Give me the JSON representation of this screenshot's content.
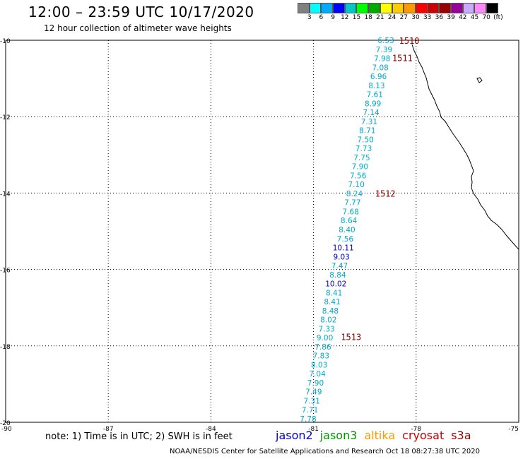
{
  "header": {
    "title": "12:00 – 23:59 UTC 10/17/2020",
    "subtitle": "12 hour collection of altimeter wave heights"
  },
  "scale": {
    "colors": [
      "#808080",
      "#00ffff",
      "#00aaff",
      "#0000ff",
      "#00c8c8",
      "#00ff00",
      "#00aa00",
      "#ffff00",
      "#ffcc00",
      "#ff9900",
      "#ff0000",
      "#cc0000",
      "#990000",
      "#990099",
      "#ccaaff",
      "#ff88ff",
      "#000000"
    ],
    "labels": [
      "3",
      "6",
      "9",
      "12",
      "15",
      "18",
      "21",
      "24",
      "27",
      "30",
      "33",
      "36",
      "39",
      "42",
      "45",
      "70",
      "(ft)"
    ]
  },
  "axes": {
    "lat_labels": [
      "-10",
      "-12",
      "-14",
      "-16",
      "-18",
      "-20"
    ],
    "lon_labels": [
      "-90",
      "-87",
      "-84",
      "-81",
      "-78",
      "-75"
    ]
  },
  "satellites": [
    {
      "name": "jason2",
      "color": "#0000cc"
    },
    {
      "name": "jason3",
      "color": "#009900"
    },
    {
      "name": "altika",
      "color": "#ff9900"
    },
    {
      "name": "cryosat",
      "color": "#cc0000"
    },
    {
      "name": "s3a",
      "color": "#990000"
    }
  ],
  "track": {
    "color": "#00aacc",
    "dark_color": "#0000cc",
    "values": [
      "6.53",
      "7.39",
      "7.98",
      "7.08",
      "6.96",
      "8.13",
      "7.61",
      "8.99",
      "7.14",
      "7.31",
      "8.71",
      "7.50",
      "7.73",
      "7.75",
      "7.90",
      "7.56",
      "7.10",
      "8.24",
      "7.77",
      "7.68",
      "8.64",
      "8.40",
      "7.56",
      "10.11",
      "9.03",
      "7.47",
      "8.84",
      "10.02",
      "8.41",
      "8.41",
      "8.48",
      "8.02",
      "7.33",
      "9.00",
      "7.86",
      "7.83",
      "8.03",
      "7.04",
      "7.90",
      "7.49",
      "7.31",
      "7.71",
      "7.78"
    ]
  },
  "time_labels": [
    {
      "text": "1510",
      "lat": -10.0,
      "lon": -78.5
    },
    {
      "text": "1511",
      "lat": -10.45,
      "lon": -78.7
    },
    {
      "text": "1512",
      "lat": -14.0,
      "lon": -79.2
    },
    {
      "text": "1513",
      "lat": -17.75,
      "lon": -80.2
    }
  ],
  "footer": {
    "note": "note:  1) Time is in UTC;  2) SWH is in feet",
    "credit": "NOAA/NESDIS Center for Satellite Applications and Research     Oct 18 08:27:38 UTC 2020"
  }
}
